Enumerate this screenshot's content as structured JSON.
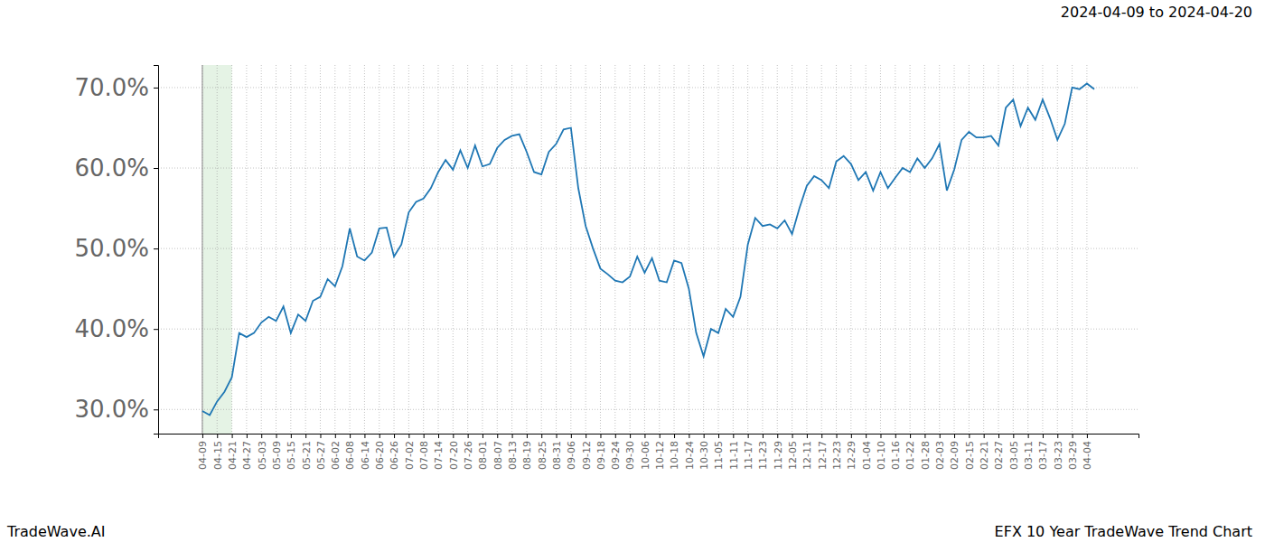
{
  "chart_data": {
    "type": "line",
    "title": "EFX 10 Year TradeWave Trend Chart",
    "subtitle": "2024-04-09 to 2024-04-20",
    "source": "TradeWave.AI",
    "categories": [
      "04-09",
      null,
      "04-15",
      null,
      "04-21",
      null,
      "04-27",
      null,
      "05-03",
      null,
      "05-09",
      null,
      "05-15",
      null,
      "05-21",
      null,
      "05-27",
      null,
      "06-02",
      null,
      "06-08",
      null,
      "06-14",
      null,
      "06-20",
      null,
      "06-26",
      null,
      "07-02",
      null,
      "07-08",
      null,
      "07-14",
      null,
      "07-20",
      null,
      "07-26",
      null,
      "08-01",
      null,
      "08-07",
      null,
      "08-13",
      null,
      "08-19",
      null,
      "08-25",
      null,
      "08-31",
      null,
      "09-06",
      null,
      "09-12",
      null,
      "09-18",
      null,
      "09-24",
      null,
      "09-30",
      null,
      "10-06",
      null,
      "10-12",
      null,
      "10-18",
      null,
      "10-24",
      null,
      "10-30",
      null,
      "11-05",
      null,
      "11-11",
      null,
      "11-17",
      null,
      "11-23",
      null,
      "11-29",
      null,
      "12-05",
      null,
      "12-11",
      null,
      "12-17",
      null,
      "12-23",
      null,
      "12-29",
      null,
      "01-04",
      null,
      "01-10",
      null,
      "01-16",
      null,
      "01-22",
      null,
      "01-28",
      null,
      "02-03",
      null,
      "02-09",
      null,
      "02-15",
      null,
      "02-21",
      null,
      "02-27",
      null,
      "03-05",
      null,
      "03-11",
      null,
      "03-17",
      null,
      "03-23",
      null,
      "03-29",
      null,
      "04-04",
      null
    ],
    "values": [
      29.8,
      29.3,
      31,
      32.2,
      34,
      39.5,
      39,
      39.5,
      40.8,
      41.5,
      41,
      42.8,
      39.5,
      41.8,
      41,
      43.5,
      44,
      46.2,
      45.3,
      47.8,
      52.5,
      49,
      48.5,
      49.5,
      52.5,
      52.6,
      49,
      50.5,
      54.5,
      55.8,
      56.2,
      57.5,
      59.5,
      61,
      59.8,
      62.2,
      60,
      62.8,
      60.2,
      60.5,
      62.5,
      63.5,
      64,
      64.2,
      62,
      59.5,
      59.2,
      62,
      63,
      64.8,
      65,
      57.5,
      52.8,
      50,
      47.5,
      46.8,
      46,
      45.8,
      46.5,
      49,
      47,
      48.8,
      46,
      45.8,
      48.5,
      48.2,
      45,
      39.5,
      36.6,
      40,
      39.5,
      42.5,
      41.5,
      44,
      50.5,
      53.8,
      52.8,
      53,
      52.5,
      53.5,
      51.8,
      55,
      57.8,
      59,
      58.5,
      57.5,
      60.8,
      61.5,
      60.5,
      58.5,
      59.5,
      57.2,
      59.5,
      57.5,
      58.8,
      60,
      59.5,
      61.2,
      60,
      61.2,
      63,
      57.2,
      59.8,
      63.5,
      64.5,
      63.8,
      63.8,
      64,
      62.8,
      67.5,
      68.5,
      65.2,
      67.5,
      66,
      68.5,
      66.2,
      63.5,
      65.5,
      70,
      69.8,
      70.5,
      69.8
    ],
    "highlight": [
      "04-09",
      "04-21"
    ],
    "color": "#1f77b4",
    "ylim": [
      27.0,
      72.8
    ],
    "yticks": [
      {
        "value": 30,
        "label": "30.0%"
      },
      {
        "value": 40,
        "label": "40.0%"
      },
      {
        "value": 50,
        "label": "50.0%"
      },
      {
        "value": 60,
        "label": "60.0%"
      },
      {
        "value": 70,
        "label": "70.0%"
      }
    ],
    "grid": true
  }
}
